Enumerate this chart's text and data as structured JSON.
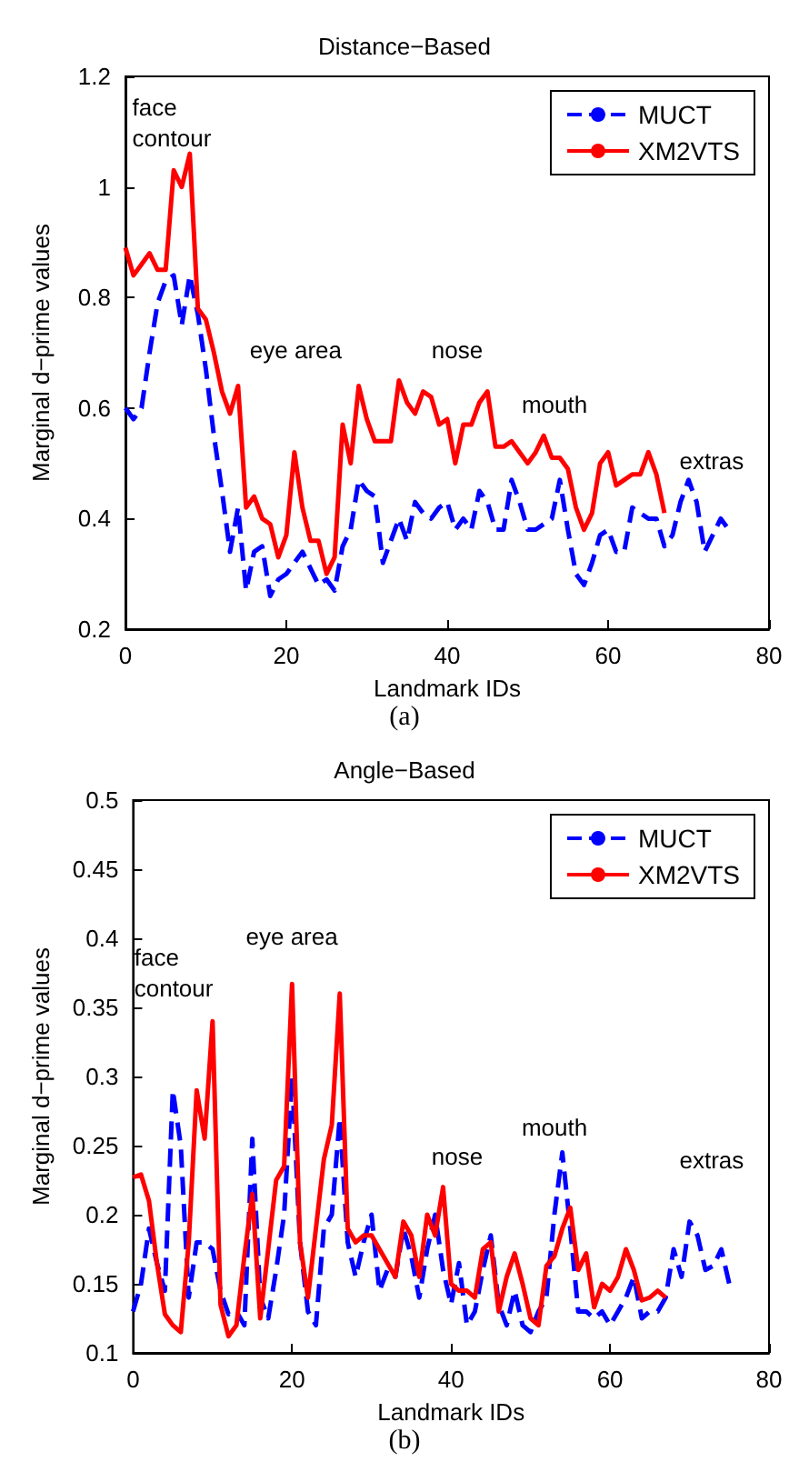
{
  "chart_data": [
    {
      "type": "line",
      "title": "Distance−Based",
      "xlabel": "Landmark IDs",
      "ylabel": "Marginal d−prime values",
      "xlim": [
        0,
        80
      ],
      "xticks": [
        0,
        20,
        40,
        60,
        80
      ],
      "ylim": [
        0.2,
        1.2
      ],
      "yticks": [
        0.2,
        0.4,
        0.6,
        0.8,
        1,
        1.2
      ],
      "grid": false,
      "legend": "top right",
      "marker": "none",
      "series": [
        {
          "name": "MUCT",
          "color": "#0000ff",
          "line_style": "dashed",
          "x": [
            0,
            1,
            2,
            3,
            4,
            5,
            6,
            7,
            8,
            9,
            10,
            11,
            12,
            13,
            14,
            15,
            16,
            17,
            18,
            19,
            20,
            21,
            22,
            23,
            24,
            25,
            26,
            27,
            28,
            29,
            30,
            31,
            32,
            33,
            34,
            35,
            36,
            37,
            38,
            39,
            40,
            41,
            42,
            43,
            44,
            45,
            46,
            47,
            48,
            49,
            50,
            51,
            52,
            53,
            54,
            55,
            56,
            57,
            58,
            59,
            60,
            61,
            62,
            63,
            64,
            65,
            66,
            67,
            68,
            69,
            70,
            71,
            72,
            73,
            74,
            75
          ],
          "values": [
            0.6,
            0.58,
            0.6,
            0.7,
            0.79,
            0.83,
            0.84,
            0.75,
            0.84,
            0.77,
            0.67,
            0.55,
            0.45,
            0.34,
            0.42,
            0.27,
            0.34,
            0.35,
            0.26,
            0.29,
            0.3,
            0.32,
            0.34,
            0.31,
            0.28,
            0.29,
            0.27,
            0.35,
            0.38,
            0.47,
            0.45,
            0.44,
            0.32,
            0.36,
            0.4,
            0.36,
            0.43,
            0.41,
            0.4,
            0.42,
            0.43,
            0.38,
            0.4,
            0.38,
            0.45,
            0.43,
            0.38,
            0.38,
            0.47,
            0.43,
            0.38,
            0.38,
            0.39,
            0.4,
            0.47,
            0.38,
            0.3,
            0.28,
            0.32,
            0.37,
            0.38,
            0.34,
            0.34,
            0.42,
            0.41,
            0.4,
            0.4,
            0.35,
            0.37,
            0.43,
            0.47,
            0.43,
            0.34,
            0.37,
            0.4,
            0.38
          ]
        },
        {
          "name": "XM2VTS",
          "color": "#ff0000",
          "line_style": "solid",
          "x": [
            0,
            1,
            2,
            3,
            4,
            5,
            6,
            7,
            8,
            9,
            10,
            11,
            12,
            13,
            14,
            15,
            16,
            17,
            18,
            19,
            20,
            21,
            22,
            23,
            24,
            25,
            26,
            27,
            28,
            29,
            30,
            31,
            32,
            33,
            34,
            35,
            36,
            37,
            38,
            39,
            40,
            41,
            42,
            43,
            44,
            45,
            46,
            47,
            48,
            49,
            50,
            51,
            52,
            53,
            54,
            55,
            56,
            57,
            58,
            59,
            60,
            61,
            62,
            63,
            64,
            65,
            66,
            67
          ],
          "values": [
            0.89,
            0.84,
            0.86,
            0.88,
            0.85,
            0.85,
            1.03,
            1.0,
            1.06,
            0.78,
            0.76,
            0.7,
            0.63,
            0.59,
            0.64,
            0.42,
            0.44,
            0.4,
            0.39,
            0.33,
            0.37,
            0.52,
            0.42,
            0.36,
            0.36,
            0.3,
            0.33,
            0.57,
            0.5,
            0.64,
            0.58,
            0.54,
            0.54,
            0.54,
            0.65,
            0.61,
            0.59,
            0.63,
            0.62,
            0.57,
            0.58,
            0.5,
            0.57,
            0.57,
            0.61,
            0.63,
            0.53,
            0.53,
            0.54,
            0.52,
            0.5,
            0.52,
            0.55,
            0.51,
            0.51,
            0.49,
            0.42,
            0.38,
            0.41,
            0.5,
            0.52,
            0.46,
            0.47,
            0.48,
            0.48,
            0.52,
            0.48,
            0.41
          ]
        }
      ],
      "annotations": [
        "face\ncontour",
        "eye area",
        "nose",
        "mouth",
        "extras",
        "(a)"
      ]
    },
    {
      "type": "line",
      "title": "Angle−Based",
      "xlabel": "Landmark IDs",
      "ylabel": "Marginal d−prime values",
      "xlim": [
        0,
        80
      ],
      "xticks": [
        0,
        20,
        40,
        60,
        80
      ],
      "ylim": [
        0.1,
        0.5
      ],
      "yticks": [
        0.1,
        0.15,
        0.2,
        0.25,
        0.3,
        0.35,
        0.4,
        0.45,
        0.5
      ],
      "grid": false,
      "legend": "top right",
      "marker": "none",
      "series": [
        {
          "name": "MUCT",
          "color": "#0000ff",
          "line_style": "dashed",
          "x": [
            0,
            1,
            2,
            3,
            4,
            5,
            6,
            7,
            8,
            9,
            10,
            11,
            12,
            13,
            14,
            15,
            16,
            17,
            18,
            19,
            20,
            21,
            22,
            23,
            24,
            25,
            26,
            27,
            28,
            29,
            30,
            31,
            32,
            33,
            34,
            35,
            36,
            37,
            38,
            39,
            40,
            41,
            42,
            43,
            44,
            45,
            46,
            47,
            48,
            49,
            50,
            51,
            52,
            53,
            54,
            55,
            56,
            57,
            58,
            59,
            60,
            61,
            62,
            63,
            64,
            65,
            66,
            67,
            68,
            69,
            70,
            71,
            72,
            73,
            74,
            75
          ],
          "values": [
            0.13,
            0.15,
            0.19,
            0.165,
            0.145,
            0.29,
            0.25,
            0.14,
            0.18,
            0.18,
            0.175,
            0.145,
            0.128,
            0.13,
            0.12,
            0.255,
            0.14,
            0.125,
            0.16,
            0.2,
            0.3,
            0.18,
            0.13,
            0.12,
            0.19,
            0.2,
            0.27,
            0.18,
            0.155,
            0.18,
            0.2,
            0.145,
            0.16,
            0.155,
            0.19,
            0.17,
            0.14,
            0.175,
            0.2,
            0.16,
            0.135,
            0.165,
            0.12,
            0.13,
            0.16,
            0.185,
            0.135,
            0.12,
            0.145,
            0.12,
            0.115,
            0.13,
            0.14,
            0.2,
            0.245,
            0.19,
            0.13,
            0.13,
            0.125,
            0.13,
            0.12,
            0.13,
            0.14,
            0.155,
            0.125,
            0.13,
            0.13,
            0.14,
            0.175,
            0.155,
            0.195,
            0.185,
            0.16,
            0.163,
            0.175,
            0.15
          ]
        },
        {
          "name": "XM2VTS",
          "color": "#ff0000",
          "line_style": "solid",
          "x": [
            0,
            1,
            2,
            3,
            4,
            5,
            6,
            7,
            8,
            9,
            10,
            11,
            12,
            13,
            14,
            15,
            16,
            17,
            18,
            19,
            20,
            21,
            22,
            23,
            24,
            25,
            26,
            27,
            28,
            29,
            30,
            31,
            32,
            33,
            34,
            35,
            36,
            37,
            38,
            39,
            40,
            41,
            42,
            43,
            44,
            45,
            46,
            47,
            48,
            49,
            50,
            51,
            52,
            53,
            54,
            55,
            56,
            57,
            58,
            59,
            60,
            61,
            62,
            63,
            64,
            65,
            66,
            67
          ],
          "values": [
            0.227,
            0.229,
            0.21,
            0.165,
            0.128,
            0.12,
            0.115,
            0.18,
            0.29,
            0.255,
            0.34,
            0.135,
            0.112,
            0.12,
            0.17,
            0.215,
            0.125,
            0.175,
            0.225,
            0.235,
            0.367,
            0.18,
            0.14,
            0.19,
            0.24,
            0.265,
            0.36,
            0.19,
            0.18,
            0.185,
            0.185,
            0.175,
            0.165,
            0.155,
            0.195,
            0.185,
            0.155,
            0.2,
            0.185,
            0.22,
            0.15,
            0.145,
            0.145,
            0.14,
            0.175,
            0.18,
            0.13,
            0.155,
            0.172,
            0.15,
            0.125,
            0.12,
            0.163,
            0.17,
            0.19,
            0.205,
            0.16,
            0.172,
            0.133,
            0.15,
            0.145,
            0.155,
            0.175,
            0.16,
            0.138,
            0.14,
            0.145,
            0.14
          ]
        }
      ],
      "annotations": [
        "face\ncontour",
        "eye area",
        "nose",
        "mouth",
        "extras",
        "(b)"
      ]
    }
  ]
}
